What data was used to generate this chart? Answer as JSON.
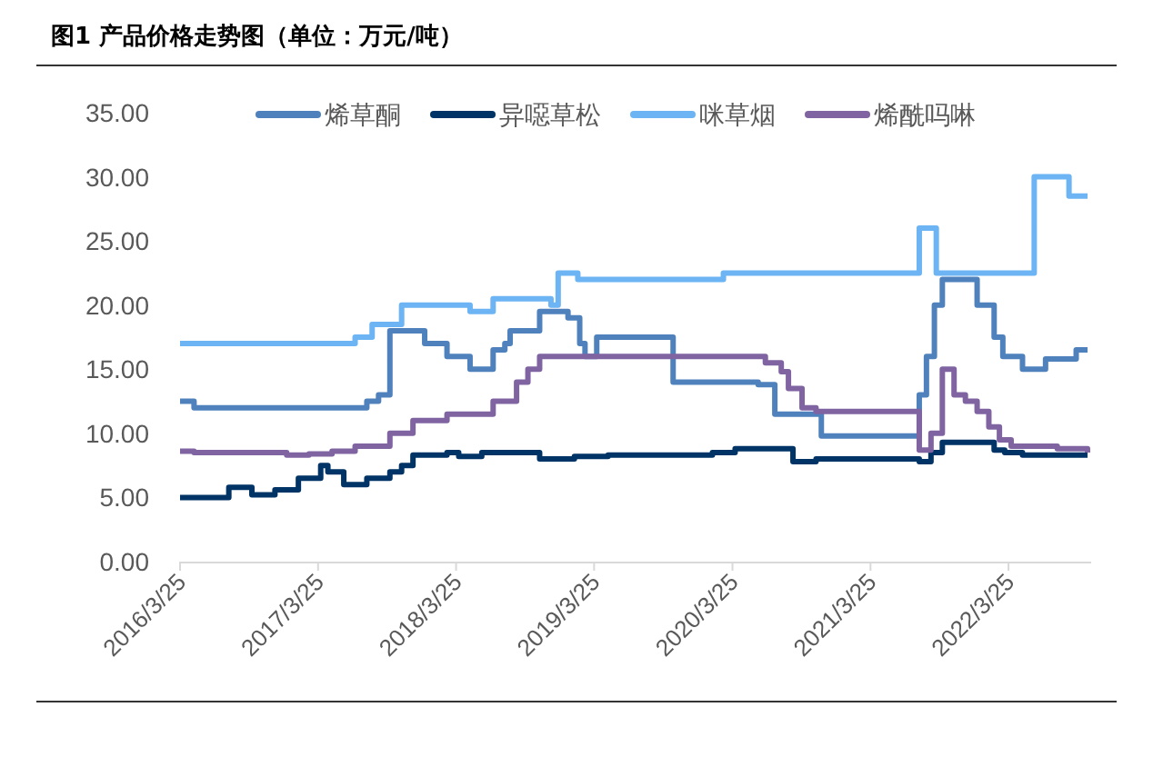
{
  "chart_data": {
    "type": "step",
    "title": "图1  产品价格走势图（单位：万元/吨）",
    "legend": "top",
    "xlim": [
      "2016-03-25",
      "2022-10-20"
    ],
    "xticks": [
      {
        "value": "2016-03-25",
        "label": "2016/3/25"
      },
      {
        "value": "2017-03-25",
        "label": "2017/3/25"
      },
      {
        "value": "2018-03-25",
        "label": "2018/3/25"
      },
      {
        "value": "2019-03-25",
        "label": "2019/3/25"
      },
      {
        "value": "2020-03-25",
        "label": "2020/3/25"
      },
      {
        "value": "2021-03-25",
        "label": "2021/3/25"
      },
      {
        "value": "2022-03-25",
        "label": "2022/3/25"
      }
    ],
    "ylim": [
      0,
      35
    ],
    "yticks": [
      {
        "value": 0,
        "label": "0.00"
      },
      {
        "value": 5,
        "label": "5.00"
      },
      {
        "value": 10,
        "label": "10.00"
      },
      {
        "value": 15,
        "label": "15.00"
      },
      {
        "value": 20,
        "label": "20.00"
      },
      {
        "value": 25,
        "label": "25.00"
      },
      {
        "value": 30,
        "label": "30.00"
      },
      {
        "value": 35,
        "label": "35.00"
      }
    ],
    "series": [
      {
        "name": "烯草酮",
        "color": "#4f81bd",
        "x": [
          "2016-03-25",
          "2016-05-01",
          "2017-08-01",
          "2017-09-01",
          "2017-10-01",
          "2018-01-01",
          "2018-03-01",
          "2018-05-01",
          "2018-07-01",
          "2018-08-01",
          "2018-08-15",
          "2018-11-01",
          "2019-01-15",
          "2019-02-15",
          "2019-03-01",
          "2019-04-01",
          "2019-10-20",
          "2020-06-01",
          "2020-07-15",
          "2020-11-15",
          "2021-08-01",
          "2021-08-20",
          "2021-09-10",
          "2021-10-01",
          "2022-01-01",
          "2022-02-15",
          "2022-03-10",
          "2022-05-01",
          "2022-07-01",
          "2022-09-20",
          "2022-10-20"
        ],
        "values": [
          12.5,
          12,
          12.5,
          13,
          18,
          17,
          16,
          15,
          16.5,
          17,
          18,
          19.5,
          19,
          17,
          16,
          17.5,
          14,
          13.8,
          11.5,
          9.8,
          13,
          16,
          20,
          22,
          20,
          17.5,
          16,
          15,
          15.8,
          16.5,
          16.5
        ]
      },
      {
        "name": "异噁草松",
        "color": "#003366",
        "x": [
          "2016-03-25",
          "2016-08-01",
          "2016-10-01",
          "2016-12-01",
          "2017-02-01",
          "2017-04-01",
          "2017-04-20",
          "2017-06-01",
          "2017-08-01",
          "2017-10-01",
          "2017-11-01",
          "2017-12-01",
          "2018-03-01",
          "2018-04-01",
          "2018-06-01",
          "2018-11-01",
          "2019-02-01",
          "2019-05-01",
          "2020-02-01",
          "2020-04-01",
          "2020-09-01",
          "2020-11-01",
          "2021-08-01",
          "2021-09-01",
          "2021-10-01",
          "2022-02-15",
          "2022-03-15",
          "2022-05-01",
          "2022-10-20"
        ],
        "values": [
          5,
          5.8,
          5.2,
          5.6,
          6.5,
          7.5,
          7,
          6,
          6.5,
          7,
          7.5,
          8.3,
          8.5,
          8.2,
          8.5,
          8,
          8.2,
          8.3,
          8.5,
          8.8,
          7.8,
          8,
          7.8,
          8.5,
          9.3,
          8.7,
          8.5,
          8.3,
          8.3
        ]
      },
      {
        "name": "咪草烟",
        "color": "#6cb4f4",
        "x": [
          "2016-03-25",
          "2017-07-01",
          "2017-08-15",
          "2017-11-01",
          "2018-05-01",
          "2018-07-01",
          "2018-12-01",
          "2018-12-20",
          "2019-01-01",
          "2019-02-10",
          "2020-03-01",
          "2021-08-01",
          "2021-09-15",
          "2022-06-01",
          "2022-09-01",
          "2022-10-20"
        ],
        "values": [
          17,
          17.5,
          18.5,
          20,
          19.5,
          20.5,
          20,
          22.5,
          22.5,
          22,
          22.5,
          26,
          22.5,
          30,
          28.5,
          28.5
        ]
      },
      {
        "name": "烯酰吗啉",
        "color": "#8064a2",
        "x": [
          "2016-03-25",
          "2016-05-01",
          "2017-01-01",
          "2017-03-01",
          "2017-05-01",
          "2017-07-01",
          "2017-10-01",
          "2017-12-01",
          "2018-03-01",
          "2018-07-01",
          "2018-09-01",
          "2018-10-01",
          "2018-11-01",
          "2020-06-20",
          "2020-08-01",
          "2020-08-20",
          "2020-09-25",
          "2020-11-01",
          "2021-08-01",
          "2021-09-01",
          "2021-10-01",
          "2021-11-01",
          "2021-12-01",
          "2022-01-01",
          "2022-02-01",
          "2022-03-01",
          "2022-04-01",
          "2022-08-01",
          "2022-10-20"
        ],
        "values": [
          8.6,
          8.5,
          8.3,
          8.4,
          8.6,
          9,
          10,
          11,
          11.5,
          12.5,
          14,
          15,
          16,
          15.5,
          14.8,
          13.5,
          12,
          11.7,
          8.7,
          10,
          15,
          13,
          12.5,
          11.7,
          10.5,
          9.5,
          9,
          8.8,
          8.5
        ]
      }
    ]
  }
}
